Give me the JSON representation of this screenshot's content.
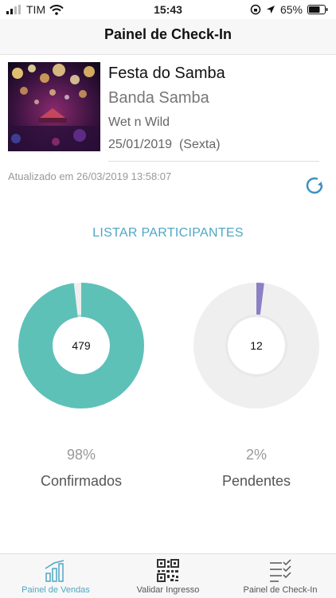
{
  "status": {
    "carrier": "TIM",
    "time": "15:43",
    "battery": "65%"
  },
  "nav": {
    "title": "Painel de Check-In"
  },
  "event": {
    "title": "Festa do Samba",
    "band": "Banda Samba",
    "venue": "Wet n Wild",
    "date": "25/01/2019  (Sexta)"
  },
  "updated": "Atualizado em 26/03/2019 13:58:07",
  "list_button": "LISTAR PARTICIPANTES",
  "stats": {
    "confirmed": {
      "value": "479",
      "percent": "98%",
      "label": "Confirmados",
      "fraction": 0.98,
      "color": "#5ec1b8"
    },
    "pending": {
      "value": "12",
      "percent": "2%",
      "label": "Pendentes",
      "fraction": 0.02,
      "color": "#8b80c4"
    }
  },
  "tabs": [
    {
      "label": "Painel de Vendas",
      "icon": "bar-chart-icon",
      "active": true
    },
    {
      "label": "Validar Ingresso",
      "icon": "qr-code-icon",
      "active": false
    },
    {
      "label": "Painel de Check-In",
      "icon": "checklist-icon",
      "active": false
    }
  ],
  "colors": {
    "accent": "#4fa7c6",
    "track": "#efefef"
  }
}
